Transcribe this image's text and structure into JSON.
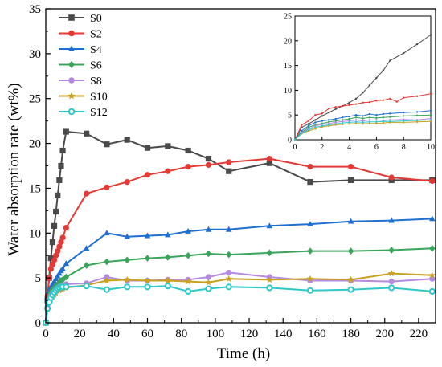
{
  "chart_data": [
    {
      "type": "line",
      "xlabel": "Time (h)",
      "ylabel": "Water absorption rate (wt%)",
      "xlim": [
        0,
        230
      ],
      "ylim": [
        0,
        35
      ],
      "xticks": [
        0,
        20,
        40,
        60,
        80,
        100,
        120,
        140,
        160,
        180,
        200,
        220
      ],
      "yticks": [
        0,
        5,
        10,
        15,
        20,
        25,
        30,
        35
      ],
      "legend_position": "top-left",
      "series": [
        {
          "name": "S0",
          "color": "#4a4a4a",
          "marker": "square",
          "x": [
            0,
            1,
            2,
            3,
            4,
            5,
            6,
            7,
            8,
            9,
            10,
            12,
            24,
            36,
            48,
            60,
            72,
            84,
            96,
            108,
            132,
            156,
            180,
            204,
            228
          ],
          "y": [
            0,
            2.5,
            5.0,
            7.2,
            9.0,
            10.8,
            12.4,
            14.2,
            15.9,
            17.5,
            19.2,
            21.3,
            21.1,
            19.9,
            20.4,
            19.5,
            19.7,
            19.2,
            18.3,
            16.9,
            17.8,
            15.7,
            15.9,
            15.9,
            15.9
          ]
        },
        {
          "name": "S2",
          "color": "#e53935",
          "marker": "circle",
          "x": [
            0,
            1,
            2,
            3,
            4,
            5,
            6,
            7,
            8,
            9,
            10,
            12,
            24,
            36,
            48,
            60,
            72,
            84,
            96,
            108,
            132,
            156,
            180,
            204,
            228
          ],
          "y": [
            0,
            3.0,
            5.0,
            6.0,
            6.5,
            7.0,
            7.5,
            8.0,
            8.5,
            9.0,
            9.5,
            10.6,
            14.4,
            15.1,
            15.7,
            16.5,
            16.9,
            17.4,
            17.6,
            17.9,
            18.3,
            17.4,
            17.4,
            16.2,
            15.8
          ]
        },
        {
          "name": "S4",
          "color": "#1f6fd1",
          "marker": "triangle",
          "x": [
            0,
            1,
            2,
            3,
            4,
            5,
            6,
            7,
            8,
            9,
            10,
            12,
            24,
            36,
            48,
            60,
            72,
            84,
            96,
            108,
            132,
            156,
            180,
            204,
            228
          ],
          "y": [
            0,
            2.5,
            3.5,
            4.0,
            4.3,
            4.6,
            4.9,
            5.2,
            5.5,
            5.8,
            6.0,
            6.6,
            8.3,
            10.0,
            9.6,
            9.7,
            9.8,
            10.2,
            10.4,
            10.4,
            10.8,
            11.0,
            11.3,
            11.4,
            11.6
          ]
        },
        {
          "name": "S6",
          "color": "#3aa55a",
          "marker": "diamond",
          "x": [
            0,
            1,
            2,
            3,
            4,
            5,
            6,
            7,
            8,
            9,
            10,
            12,
            24,
            36,
            48,
            60,
            72,
            84,
            96,
            108,
            132,
            156,
            180,
            204,
            228
          ],
          "y": [
            0,
            2.2,
            3.0,
            3.4,
            3.7,
            3.9,
            4.1,
            4.3,
            4.5,
            4.7,
            4.8,
            5.1,
            6.4,
            6.8,
            7.0,
            7.2,
            7.3,
            7.5,
            7.7,
            7.6,
            7.8,
            8.0,
            8.0,
            8.1,
            8.3
          ]
        },
        {
          "name": "S8",
          "color": "#b58ae0",
          "marker": "circle",
          "x": [
            0,
            1,
            2,
            3,
            4,
            5,
            6,
            7,
            8,
            9,
            10,
            12,
            24,
            36,
            48,
            60,
            72,
            84,
            96,
            108,
            132,
            156,
            180,
            204,
            228
          ],
          "y": [
            0,
            1.8,
            2.6,
            3.0,
            3.3,
            3.5,
            3.7,
            3.9,
            4.0,
            4.1,
            4.2,
            4.3,
            4.4,
            5.1,
            4.7,
            4.7,
            4.8,
            4.8,
            5.1,
            5.6,
            5.1,
            4.7,
            4.7,
            4.6,
            4.9
          ]
        },
        {
          "name": "S10",
          "color": "#c9a020",
          "marker": "star",
          "x": [
            0,
            1,
            2,
            3,
            4,
            5,
            6,
            7,
            8,
            9,
            10,
            12,
            24,
            36,
            48,
            60,
            72,
            84,
            96,
            108,
            132,
            156,
            180,
            204,
            228
          ],
          "y": [
            0,
            1.5,
            2.2,
            2.6,
            2.9,
            3.1,
            3.3,
            3.5,
            3.6,
            3.7,
            3.8,
            3.9,
            4.2,
            4.7,
            4.8,
            4.7,
            4.7,
            4.6,
            4.5,
            4.9,
            4.8,
            4.9,
            4.8,
            5.5,
            5.3
          ]
        },
        {
          "name": "S12",
          "color": "#2ec7c9",
          "marker": "circle-open",
          "x": [
            0,
            1,
            2,
            3,
            4,
            5,
            6,
            7,
            8,
            9,
            10,
            12,
            24,
            36,
            48,
            60,
            72,
            84,
            96,
            108,
            132,
            156,
            180,
            204,
            228
          ],
          "y": [
            0,
            1.6,
            2.3,
            2.8,
            3.1,
            3.4,
            3.6,
            3.8,
            3.9,
            4.0,
            4.0,
            4.0,
            4.1,
            3.7,
            4.0,
            4.0,
            4.1,
            3.5,
            3.8,
            4.0,
            3.9,
            3.6,
            3.7,
            3.9,
            3.5
          ]
        }
      ]
    },
    {
      "type": "line",
      "xlim": [
        0,
        10
      ],
      "ylim": [
        0,
        25
      ],
      "xticks": [
        0,
        2,
        4,
        6,
        8,
        10
      ],
      "yticks": [
        0,
        5,
        10,
        15,
        20,
        25
      ],
      "series": [
        {
          "color": "#4a4a4a",
          "x": [
            0,
            0.5,
            1,
            1.5,
            2,
            2.5,
            3,
            3.5,
            4,
            4.5,
            5,
            5.5,
            6,
            6.5,
            7,
            8,
            9,
            10
          ],
          "y": [
            0,
            2.5,
            3.2,
            4.0,
            4.8,
            5.5,
            6.2,
            6.8,
            7.5,
            8.3,
            9.5,
            11.0,
            12.5,
            14.0,
            16.0,
            17.5,
            19.3,
            21.2
          ]
        },
        {
          "color": "#e53935",
          "x": [
            0,
            0.5,
            1,
            1.5,
            2,
            2.5,
            3,
            3.5,
            4,
            4.5,
            5,
            5.5,
            6,
            6.5,
            7,
            7.5,
            8,
            9,
            10
          ],
          "y": [
            0,
            3.0,
            3.8,
            5.0,
            5.3,
            6.3,
            6.6,
            6.8,
            7.0,
            7.2,
            7.5,
            7.6,
            7.9,
            8.0,
            8.3,
            7.7,
            8.5,
            8.8,
            9.3
          ]
        },
        {
          "color": "#1f6fd1",
          "x": [
            0,
            0.5,
            1,
            1.5,
            2,
            2.5,
            3,
            3.5,
            4,
            4.5,
            5,
            5.5,
            6,
            6.5,
            7,
            8,
            9,
            10
          ],
          "y": [
            0,
            1.8,
            2.8,
            3.5,
            3.8,
            4.0,
            4.2,
            4.5,
            4.7,
            5.0,
            4.8,
            5.2,
            5.0,
            5.2,
            5.3,
            5.5,
            5.6,
            5.9
          ]
        },
        {
          "color": "#3aa55a",
          "x": [
            0,
            0.5,
            1,
            1.5,
            2,
            2.5,
            3,
            3.5,
            4,
            4.5,
            5,
            5.5,
            6,
            6.5,
            7,
            8,
            9,
            10
          ],
          "y": [
            0,
            1.5,
            2.5,
            3.0,
            3.3,
            3.6,
            3.8,
            4.0,
            4.2,
            4.5,
            4.3,
            4.5,
            4.4,
            4.5,
            4.6,
            4.8,
            4.9,
            5.0
          ]
        },
        {
          "color": "#b58ae0",
          "x": [
            0,
            0.5,
            1,
            1.5,
            2,
            2.5,
            3,
            3.5,
            4,
            4.5,
            5,
            5.5,
            6,
            6.5,
            7,
            8,
            9,
            10
          ],
          "y": [
            0,
            1.4,
            2.2,
            2.8,
            3.1,
            3.3,
            3.5,
            3.7,
            3.8,
            4.0,
            3.8,
            4.0,
            4.0,
            3.9,
            4.0,
            4.1,
            4.0,
            4.3
          ]
        },
        {
          "color": "#c9a020",
          "x": [
            0,
            0.5,
            1,
            1.5,
            2,
            2.5,
            3,
            3.5,
            4,
            4.5,
            5,
            5.5,
            6,
            6.5,
            7,
            8,
            9,
            10
          ],
          "y": [
            0,
            1.2,
            1.8,
            2.2,
            2.6,
            2.8,
            3.0,
            3.1,
            3.2,
            3.3,
            3.2,
            3.3,
            3.3,
            3.4,
            3.5,
            3.5,
            3.6,
            3.7
          ]
        },
        {
          "color": "#2ec7c9",
          "x": [
            0,
            0.5,
            1,
            1.5,
            2,
            2.5,
            3,
            3.5,
            4,
            4.5,
            5,
            5.5,
            6,
            6.5,
            7,
            8,
            9,
            10
          ],
          "y": [
            0,
            1.3,
            2.0,
            2.5,
            2.8,
            3.0,
            3.2,
            3.4,
            3.5,
            3.6,
            3.5,
            3.6,
            3.6,
            3.7,
            3.7,
            3.8,
            3.9,
            4.0
          ]
        }
      ]
    }
  ]
}
